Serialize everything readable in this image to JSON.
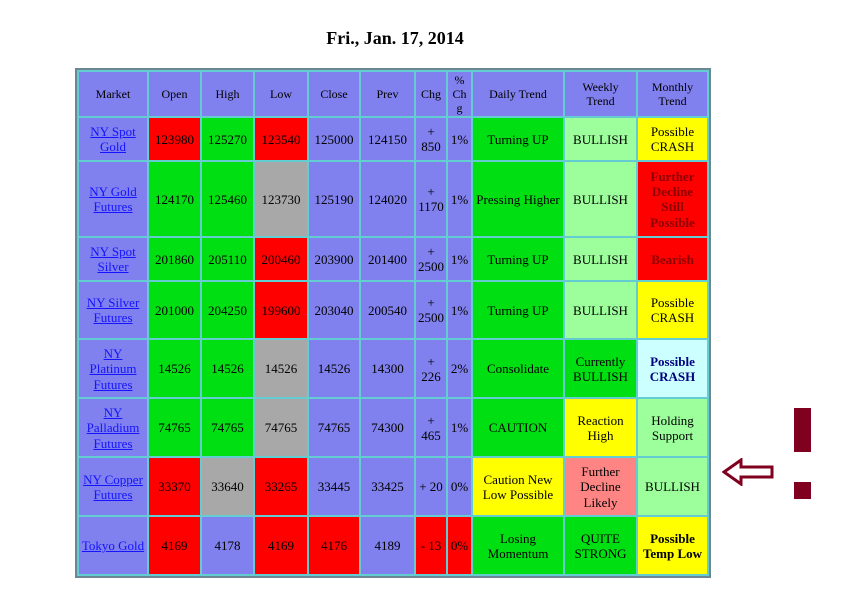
{
  "title": "Fri., Jan. 17, 2014",
  "palette": {
    "purple": "#8080ee",
    "red": "#ff0000",
    "green": "#00df12",
    "paleGreen": "#9cff9c",
    "yellow": "#ffff00",
    "gray": "#a8a8a8",
    "salmon": "#ff8585",
    "paleBlue": "#ccffff",
    "maroon": "#8b0000",
    "navy": "#000080",
    "link": "#1414ff"
  },
  "annotations": {
    "color": "#800020",
    "arrow_icon": "left-arrow",
    "target_row": "NY Copper Futures"
  },
  "table": {
    "headers": [
      "Market",
      "Open",
      "High",
      "Low",
      "Close",
      "Prev",
      "Chg",
      "% Chg",
      "Daily Trend",
      "Weekly Trend",
      "Monthly Trend"
    ],
    "rows": [
      {
        "market": {
          "text": "NY Spot Gold",
          "bg": "purple"
        },
        "cells": [
          {
            "t": "123980",
            "bg": "red"
          },
          {
            "t": "125270",
            "bg": "green"
          },
          {
            "t": "123540",
            "bg": "red"
          },
          {
            "t": "125000",
            "bg": "purple"
          },
          {
            "t": "124150",
            "bg": "purple"
          },
          {
            "t": "+ 850",
            "bg": "purple"
          },
          {
            "t": "1%",
            "bg": "purple"
          },
          {
            "t": "Turning UP",
            "bg": "green"
          },
          {
            "t": "BULLISH",
            "bg": "paleGreen"
          },
          {
            "t": "Possible CRASH",
            "bg": "yellow"
          }
        ]
      },
      {
        "market": {
          "text": "NY Gold Futures",
          "bg": "purple"
        },
        "cells": [
          {
            "t": "124170",
            "bg": "green"
          },
          {
            "t": "125460",
            "bg": "green"
          },
          {
            "t": "123730",
            "bg": "gray"
          },
          {
            "t": "125190",
            "bg": "purple"
          },
          {
            "t": "124020",
            "bg": "purple"
          },
          {
            "t": "+ 1170",
            "bg": "purple"
          },
          {
            "t": "1%",
            "bg": "purple"
          },
          {
            "t": "Pressing Higher",
            "bg": "green"
          },
          {
            "t": "BULLISH",
            "bg": "paleGreen"
          },
          {
            "t": "Further Decline Still Possible",
            "bg": "red",
            "fg": "maroon",
            "b": true
          }
        ]
      },
      {
        "market": {
          "text": "NY Spot Silver",
          "bg": "purple"
        },
        "cells": [
          {
            "t": "201860",
            "bg": "green"
          },
          {
            "t": "205110",
            "bg": "green"
          },
          {
            "t": "200460",
            "bg": "red"
          },
          {
            "t": "203900",
            "bg": "purple"
          },
          {
            "t": "201400",
            "bg": "purple"
          },
          {
            "t": "+ 2500",
            "bg": "purple"
          },
          {
            "t": "1%",
            "bg": "purple"
          },
          {
            "t": "Turning UP",
            "bg": "green"
          },
          {
            "t": "BULLISH",
            "bg": "paleGreen"
          },
          {
            "t": "Bearish",
            "bg": "red",
            "fg": "maroon",
            "b": true
          }
        ]
      },
      {
        "market": {
          "text": "NY Silver Futures",
          "bg": "purple"
        },
        "cells": [
          {
            "t": "201000",
            "bg": "green"
          },
          {
            "t": "204250",
            "bg": "green"
          },
          {
            "t": "199600",
            "bg": "red"
          },
          {
            "t": "203040",
            "bg": "purple"
          },
          {
            "t": "200540",
            "bg": "purple"
          },
          {
            "t": "+ 2500",
            "bg": "purple"
          },
          {
            "t": "1%",
            "bg": "purple"
          },
          {
            "t": "Turning UP",
            "bg": "green"
          },
          {
            "t": "BULLISH",
            "bg": "paleGreen"
          },
          {
            "t": "Possible CRASH",
            "bg": "yellow"
          }
        ]
      },
      {
        "market": {
          "text": "NY Platinum Futures",
          "bg": "purple"
        },
        "cells": [
          {
            "t": "14526",
            "bg": "green"
          },
          {
            "t": "14526",
            "bg": "green"
          },
          {
            "t": "14526",
            "bg": "gray"
          },
          {
            "t": "14526",
            "bg": "purple"
          },
          {
            "t": "14300",
            "bg": "purple"
          },
          {
            "t": "+ 226",
            "bg": "purple"
          },
          {
            "t": "2%",
            "bg": "purple"
          },
          {
            "t": "Consolidate",
            "bg": "green"
          },
          {
            "t": "Currently BULLISH",
            "bg": "green"
          },
          {
            "t": "Possible CRASH",
            "bg": "paleBlue",
            "fg": "navy",
            "b": true
          }
        ]
      },
      {
        "market": {
          "text": "NY Palladium Futures",
          "bg": "purple"
        },
        "cells": [
          {
            "t": "74765",
            "bg": "green"
          },
          {
            "t": "74765",
            "bg": "green"
          },
          {
            "t": "74765",
            "bg": "gray"
          },
          {
            "t": "74765",
            "bg": "purple"
          },
          {
            "t": "74300",
            "bg": "purple"
          },
          {
            "t": "+ 465",
            "bg": "purple"
          },
          {
            "t": "1%",
            "bg": "purple"
          },
          {
            "t": "CAUTION",
            "bg": "green"
          },
          {
            "t": "Reaction High",
            "bg": "yellow"
          },
          {
            "t": "Holding Support",
            "bg": "paleGreen"
          }
        ]
      },
      {
        "market": {
          "text": "NY Copper Futures",
          "bg": "purple"
        },
        "cells": [
          {
            "t": "33370",
            "bg": "red"
          },
          {
            "t": "33640",
            "bg": "gray"
          },
          {
            "t": "33265",
            "bg": "red"
          },
          {
            "t": "33445",
            "bg": "purple"
          },
          {
            "t": "33425",
            "bg": "purple"
          },
          {
            "t": "+ 20",
            "bg": "purple"
          },
          {
            "t": "0%",
            "bg": "purple"
          },
          {
            "t": "Caution New Low Possible",
            "bg": "yellow"
          },
          {
            "t": "Further Decline Likely",
            "bg": "salmon"
          },
          {
            "t": "BULLISH",
            "bg": "paleGreen"
          }
        ]
      },
      {
        "market": {
          "text": "Tokyo Gold",
          "bg": "purple"
        },
        "cells": [
          {
            "t": "4169",
            "bg": "red"
          },
          {
            "t": "4178",
            "bg": "purple"
          },
          {
            "t": "4169",
            "bg": "red"
          },
          {
            "t": "4176",
            "bg": "red"
          },
          {
            "t": "4189",
            "bg": "purple"
          },
          {
            "t": "- 13",
            "bg": "red"
          },
          {
            "t": "0%",
            "bg": "red"
          },
          {
            "t": "Losing Momentum",
            "bg": "green"
          },
          {
            "t": "QUITE STRONG",
            "bg": "green"
          },
          {
            "t": "Possible Temp Low",
            "bg": "yellow",
            "b": true
          }
        ]
      }
    ]
  }
}
